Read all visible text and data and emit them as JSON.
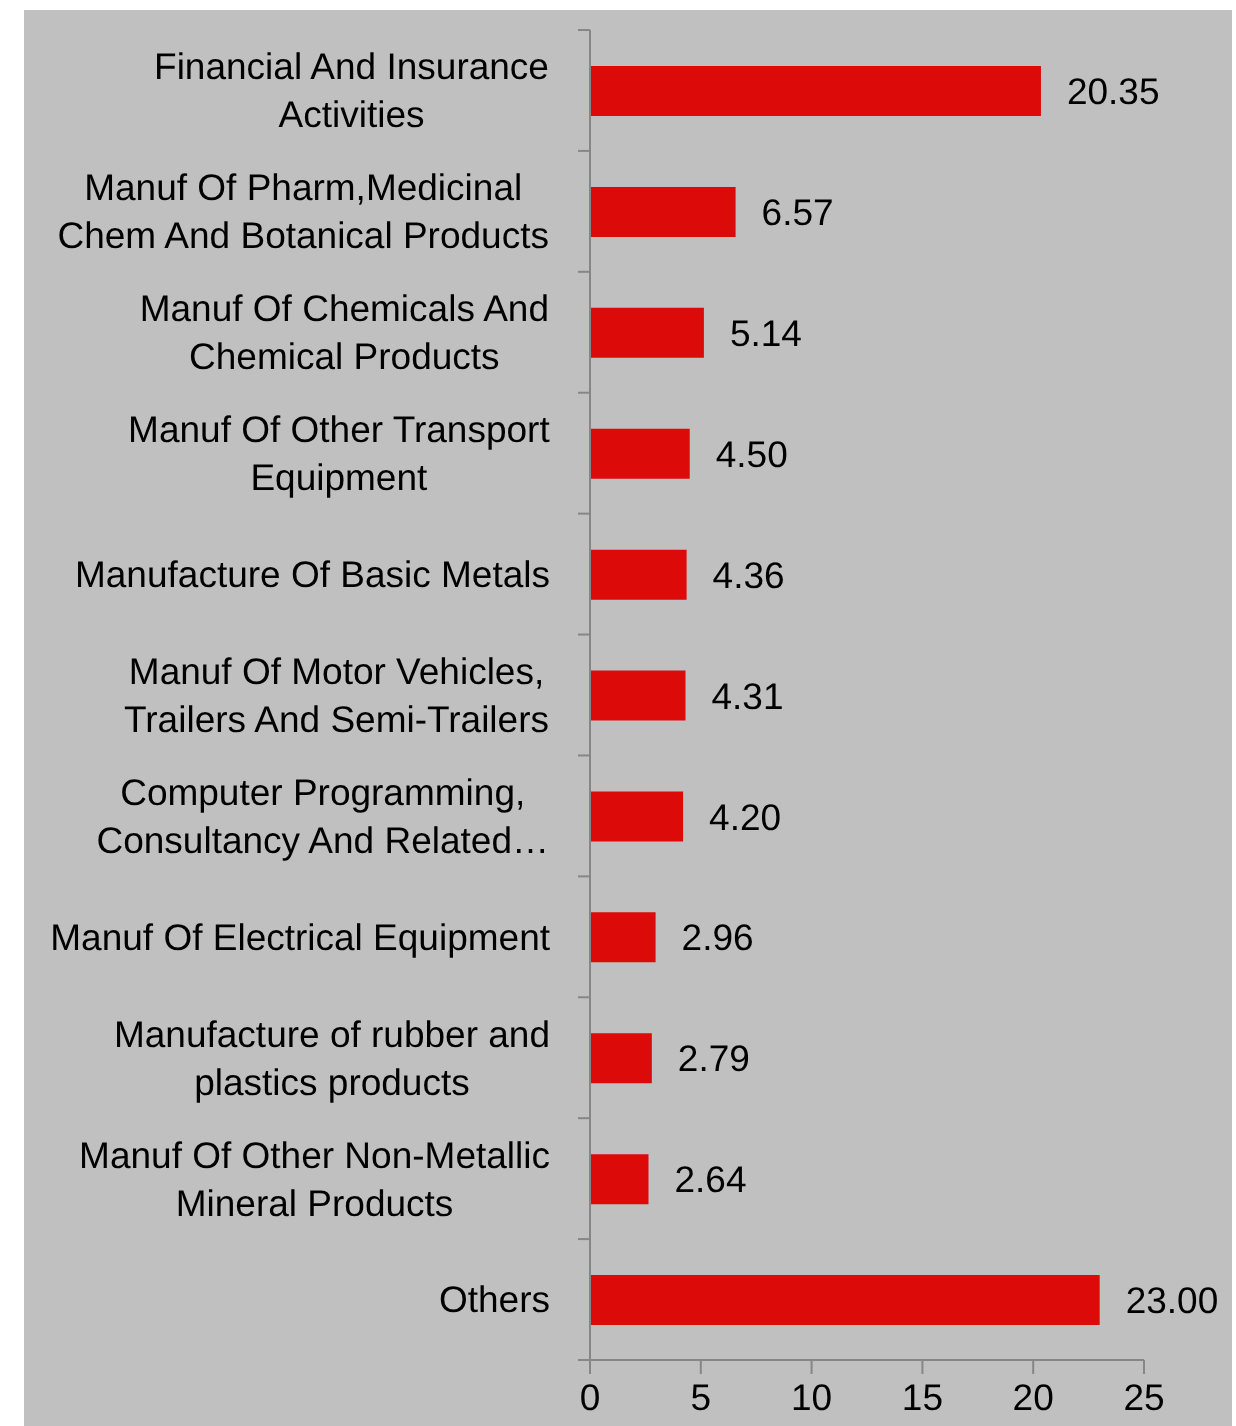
{
  "chart_data": {
    "type": "bar",
    "orientation": "horizontal",
    "categories": [
      "Financial And Insurance Activities",
      "Manuf Of Pharm,Medicinal Chem And Botanical Products",
      "Manuf Of Chemicals And Chemical Products",
      "Manuf Of Other Transport Equipment",
      "Manufacture Of Basic Metals",
      "Manuf Of Motor Vehicles, Trailers And Semi-Trailers",
      "Computer Programming, Consultancy And Related…",
      "Manuf Of Electrical Equipment",
      "Manufacture of rubber and plastics products",
      "Manuf Of Other Non-Metallic Mineral Products",
      "Others"
    ],
    "values": [
      20.35,
      6.57,
      5.14,
      4.5,
      4.36,
      4.31,
      4.2,
      2.96,
      2.79,
      2.64,
      23.0
    ],
    "value_labels": [
      "20.35",
      "6.57",
      "5.14",
      "4.50",
      "4.36",
      "4.31",
      "4.20",
      "2.96",
      "2.79",
      "2.64",
      "23.00"
    ],
    "color": "#dd0a0a",
    "xlim": [
      0,
      25
    ],
    "xticks": [
      0,
      5,
      10,
      15,
      20,
      25
    ]
  }
}
